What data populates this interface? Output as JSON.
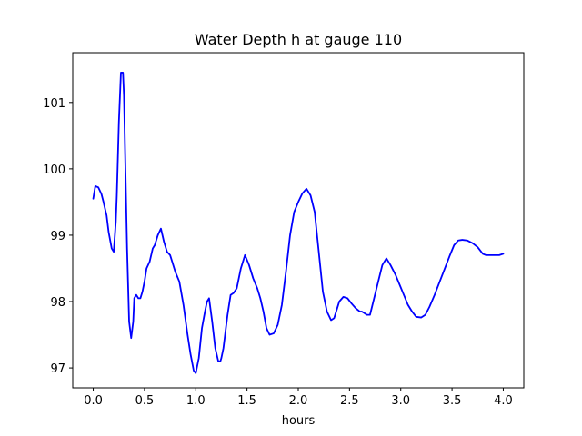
{
  "chart_data": {
    "type": "line",
    "title": "Water Depth h at gauge 110",
    "xlabel": "hours",
    "ylabel": "",
    "xlim": [
      -0.2,
      4.2
    ],
    "ylim": [
      96.7,
      101.75
    ],
    "xticks": [
      0.0,
      0.5,
      1.0,
      1.5,
      2.0,
      2.5,
      3.0,
      3.5,
      4.0
    ],
    "xtick_labels": [
      "0.0",
      "0.5",
      "1.0",
      "1.5",
      "2.0",
      "2.5",
      "3.0",
      "3.5",
      "4.0"
    ],
    "yticks": [
      97,
      98,
      99,
      100,
      101
    ],
    "ytick_labels": [
      "97",
      "98",
      "99",
      "100",
      "101"
    ],
    "grid": false,
    "series": [
      {
        "color": "#0000ff",
        "x": [
          0.0,
          0.02,
          0.05,
          0.08,
          0.1,
          0.13,
          0.15,
          0.18,
          0.2,
          0.22,
          0.23,
          0.25,
          0.27,
          0.29,
          0.3,
          0.31,
          0.33,
          0.35,
          0.37,
          0.39,
          0.4,
          0.42,
          0.44,
          0.46,
          0.48,
          0.5,
          0.52,
          0.55,
          0.58,
          0.6,
          0.63,
          0.66,
          0.69,
          0.72,
          0.75,
          0.77,
          0.8,
          0.84,
          0.88,
          0.92,
          0.95,
          0.98,
          1.0,
          1.03,
          1.06,
          1.09,
          1.11,
          1.13,
          1.16,
          1.19,
          1.22,
          1.24,
          1.25,
          1.27,
          1.29,
          1.31,
          1.34,
          1.37,
          1.4,
          1.44,
          1.48,
          1.52,
          1.56,
          1.6,
          1.63,
          1.66,
          1.69,
          1.72,
          1.76,
          1.8,
          1.84,
          1.88,
          1.92,
          1.96,
          2.0,
          2.04,
          2.08,
          2.12,
          2.16,
          2.2,
          2.24,
          2.28,
          2.32,
          2.35,
          2.38,
          2.4,
          2.44,
          2.48,
          2.52,
          2.56,
          2.6,
          2.62,
          2.64,
          2.67,
          2.7,
          2.74,
          2.78,
          2.82,
          2.86,
          2.9,
          2.95,
          2.99,
          3.03,
          3.07,
          3.11,
          3.15,
          3.2,
          3.24,
          3.28,
          3.33,
          3.38,
          3.43,
          3.48,
          3.52,
          3.56,
          3.6,
          3.65,
          3.7,
          3.75,
          3.8,
          3.83,
          3.87,
          3.92,
          3.96,
          4.0
        ],
        "y": [
          99.55,
          99.74,
          99.72,
          99.62,
          99.5,
          99.3,
          99.05,
          98.8,
          98.75,
          99.2,
          99.6,
          100.7,
          101.45,
          101.45,
          101.1,
          100.3,
          98.8,
          97.7,
          97.45,
          97.7,
          98.05,
          98.1,
          98.05,
          98.05,
          98.15,
          98.3,
          98.5,
          98.6,
          98.8,
          98.85,
          99.0,
          99.1,
          98.9,
          98.75,
          98.7,
          98.6,
          98.45,
          98.3,
          97.95,
          97.5,
          97.2,
          96.96,
          96.92,
          97.15,
          97.6,
          97.85,
          98.0,
          98.05,
          97.7,
          97.3,
          97.1,
          97.1,
          97.15,
          97.3,
          97.55,
          97.8,
          98.1,
          98.13,
          98.2,
          98.5,
          98.7,
          98.55,
          98.35,
          98.2,
          98.05,
          97.85,
          97.6,
          97.5,
          97.52,
          97.65,
          97.95,
          98.45,
          99.0,
          99.35,
          99.5,
          99.63,
          99.7,
          99.6,
          99.35,
          98.75,
          98.15,
          97.85,
          97.72,
          97.75,
          97.9,
          98.0,
          98.07,
          98.05,
          97.97,
          97.9,
          97.85,
          97.85,
          97.83,
          97.8,
          97.8,
          98.05,
          98.3,
          98.55,
          98.65,
          98.55,
          98.4,
          98.25,
          98.1,
          97.95,
          97.85,
          97.77,
          97.76,
          97.8,
          97.92,
          98.1,
          98.3,
          98.5,
          98.7,
          98.85,
          98.92,
          98.93,
          98.92,
          98.88,
          98.82,
          98.72,
          98.7,
          98.7,
          98.7,
          98.7,
          98.72
        ]
      }
    ]
  }
}
